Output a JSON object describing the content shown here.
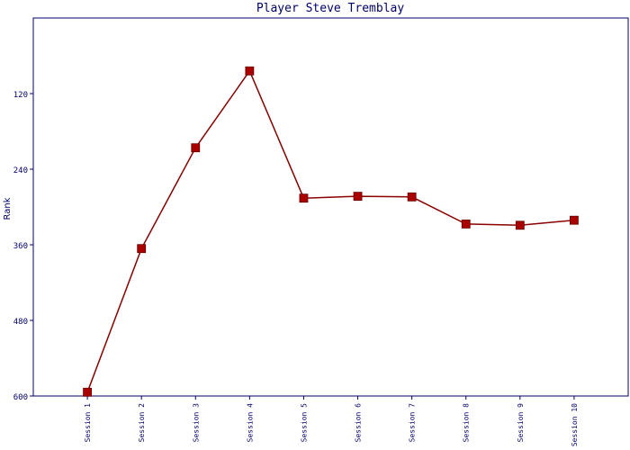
{
  "chart_data": {
    "type": "line",
    "title": "Player Steve Tremblay",
    "y_label": "Rank",
    "categories": [
      "Session 1",
      "Session 2",
      "Session 3",
      "Session 4",
      "Session 5",
      "Session 6",
      "Session 7",
      "Session 8",
      "Session 9",
      "Session 10"
    ],
    "series": [
      {
        "name": "Rank",
        "color": "#aa0000",
        "values": [
          594,
          366,
          206,
          84,
          286,
          283,
          284,
          327,
          329,
          321
        ]
      }
    ],
    "ylim": [
      600,
      0
    ],
    "yticks": [
      120,
      240,
      360,
      480,
      600
    ]
  }
}
